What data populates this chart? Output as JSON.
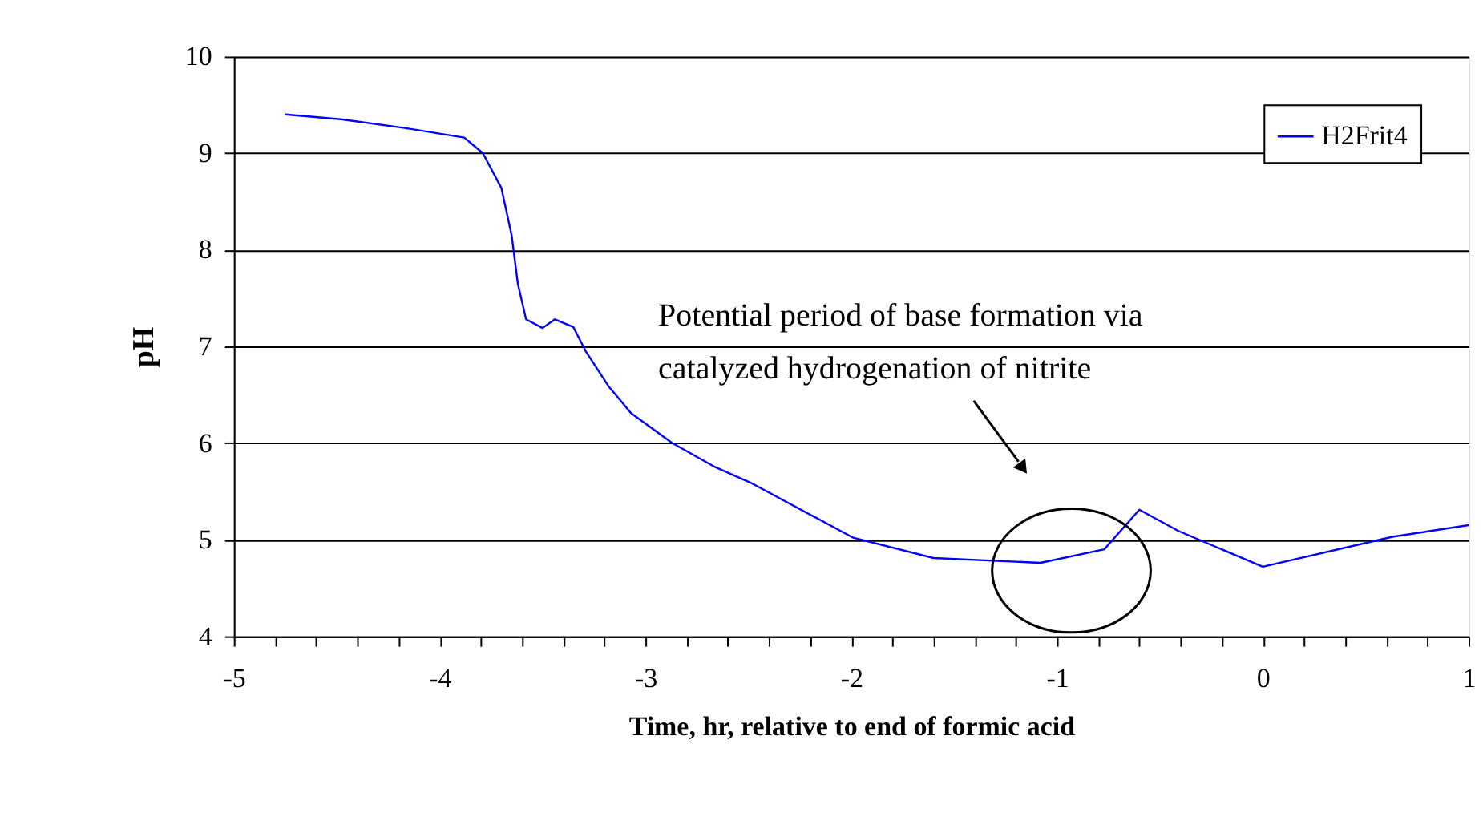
{
  "chart_data": {
    "type": "line",
    "xlabel": "Time, hr, relative to end of formic acid",
    "ylabel": "pH",
    "xlim": [
      -5,
      1
    ],
    "ylim": [
      4,
      10
    ],
    "xticks": [
      -5,
      {
        "value": -4.8,
        "label": null
      },
      {
        "value": -4.6,
        "label": null
      },
      {
        "value": -4.4,
        "label": null
      },
      {
        "value": -4.2,
        "label": null
      },
      -4,
      {
        "value": -3.8,
        "label": null
      },
      {
        "value": -3.6,
        "label": null
      },
      {
        "value": -3.4,
        "label": null
      },
      {
        "value": -3.2,
        "label": null
      },
      -3,
      {
        "value": -2.8,
        "label": null
      },
      {
        "value": -2.6,
        "label": null
      },
      {
        "value": -2.4,
        "label": null
      },
      {
        "value": -2.2,
        "label": null
      },
      -2,
      {
        "value": -1.8,
        "label": null
      },
      {
        "value": -1.6,
        "label": null
      },
      {
        "value": -1.4,
        "label": null
      },
      {
        "value": -1.2,
        "label": null
      },
      -1,
      {
        "value": -0.8,
        "label": null
      },
      {
        "value": -0.6,
        "label": null
      },
      {
        "value": -0.4,
        "label": null
      },
      {
        "value": -0.2,
        "label": null
      },
      0,
      {
        "value": 0.2,
        "label": null
      },
      {
        "value": 0.4,
        "label": null
      },
      {
        "value": 0.6,
        "label": null
      },
      {
        "value": 0.8,
        "label": null
      },
      1
    ],
    "yticks": [
      4,
      5,
      6,
      7,
      8,
      9,
      10
    ],
    "grid": "y",
    "legend": "top right",
    "line_style": "solid",
    "annotations": [
      "Potential period of base formation via\ncatalyzed hydrogenation of nitrite"
    ],
    "series": [
      {
        "name": "H2Frit4",
        "color": "#0000ff",
        "x": [
          -4.75,
          -4.48,
          -4.17,
          -3.88,
          -3.79,
          -3.7,
          -3.65,
          -3.62,
          -3.58,
          -3.5,
          -3.44,
          -3.35,
          -3.29,
          -3.18,
          -3.07,
          -2.87,
          -2.66,
          -2.48,
          -1.99,
          -1.6,
          -1.08,
          -0.77,
          -0.6,
          -0.41,
          0.0,
          0.63,
          1.0
        ],
        "values": [
          9.4,
          9.35,
          9.26,
          9.16,
          9.0,
          8.64,
          8.15,
          7.65,
          7.28,
          7.19,
          7.28,
          7.2,
          6.95,
          6.59,
          6.31,
          6.0,
          5.75,
          5.58,
          5.02,
          4.81,
          4.76,
          4.9,
          5.31,
          5.09,
          4.72,
          5.03,
          5.15
        ]
      }
    ]
  }
}
